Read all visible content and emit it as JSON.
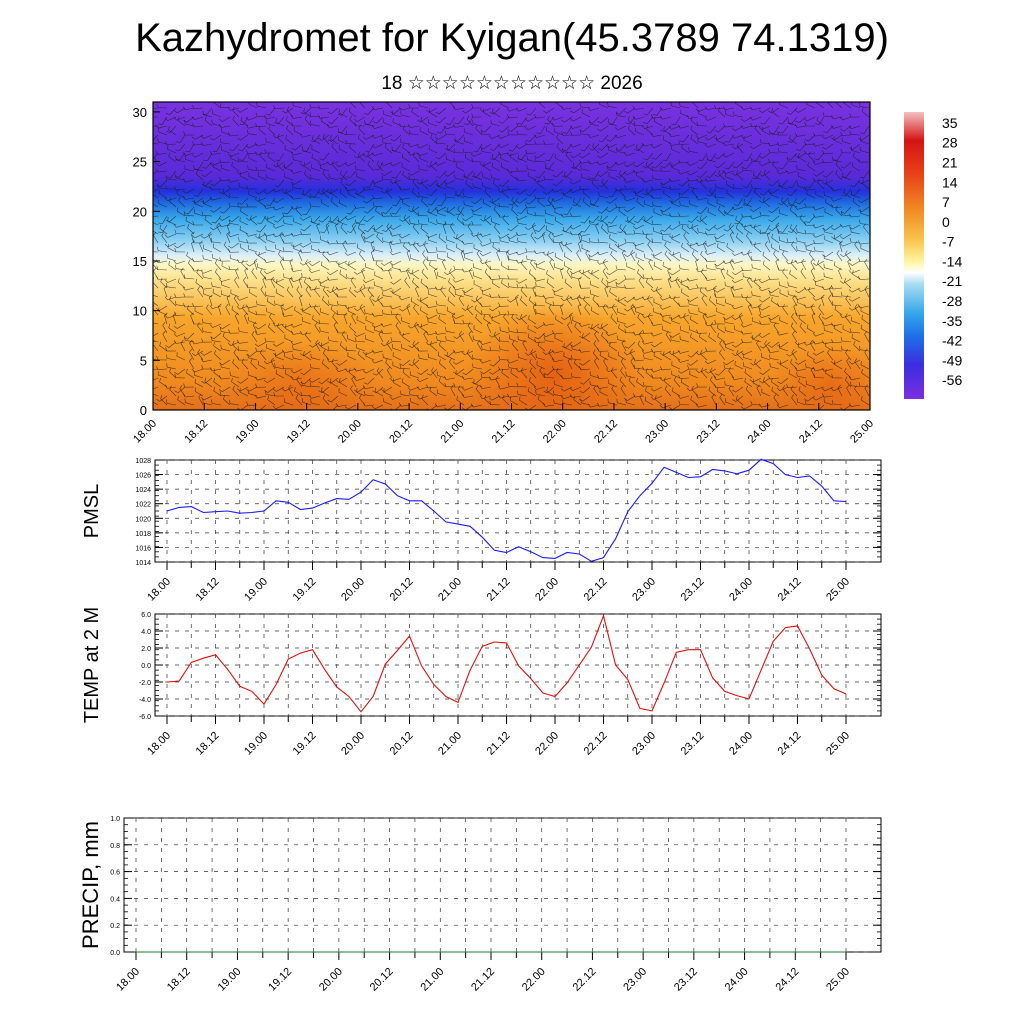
{
  "title": "Kazhydromet for Kyigan(45.3789 74.1319)",
  "subtitle": "18 ☆☆☆☆☆☆☆☆☆☆☆ 2026",
  "x_ticks": [
    "18.00",
    "18.12",
    "19.00",
    "19.12",
    "20.00",
    "20.12",
    "21.00",
    "21.12",
    "22.00",
    "22.12",
    "23.00",
    "23.12",
    "24.00",
    "24.12",
    "25.00"
  ],
  "colors": {
    "pmsl_line": "#1a1aff",
    "temp_line": "#e01010",
    "precip_line": "#1a7a3a",
    "frame": "#000000",
    "grid": "#555555"
  },
  "chart_data": [
    {
      "type": "heatmap",
      "name": "vertical-section",
      "title": "",
      "ylabel": "",
      "ylim": [
        0,
        31
      ],
      "y_ticks": [
        "0",
        "5",
        "10",
        "15",
        "20",
        "25",
        "30"
      ],
      "colorbar_labels": [
        "35",
        "28",
        "21",
        "14",
        "7",
        "0",
        "-7",
        "-14",
        "-21",
        "-28",
        "-35",
        "-42",
        "-49",
        "-56"
      ],
      "colorbar_range": [
        -63,
        42
      ],
      "description_value": "temperature by height with wind barbs"
    },
    {
      "type": "line",
      "name": "pmsl",
      "ylabel": "PMSL",
      "ylim": [
        1014,
        1028
      ],
      "y_ticks": [
        "1014",
        "1016",
        "1018",
        "1020",
        "1022",
        "1024",
        "1026",
        "1028"
      ],
      "x_steps": 2,
      "values": [
        1021.0,
        1021.5,
        1021.6,
        1020.8,
        1020.9,
        1021.0,
        1020.7,
        1020.8,
        1021.0,
        1022.4,
        1022.2,
        1021.2,
        1021.4,
        1022.1,
        1022.7,
        1022.6,
        1023.6,
        1025.3,
        1024.7,
        1023.1,
        1022.4,
        1022.4,
        1021.0,
        1019.5,
        1019.2,
        1018.9,
        1017.4,
        1015.6,
        1015.3,
        1016.1,
        1015.4,
        1014.6,
        1014.5,
        1015.3,
        1015.1,
        1014.1,
        1014.6,
        1017.2,
        1020.9,
        1023.1,
        1024.8,
        1027.0,
        1026.3,
        1025.6,
        1025.7,
        1026.7,
        1026.5,
        1026.1,
        1026.6,
        1028.1,
        1027.5,
        1026.0,
        1025.6,
        1025.8,
        1024.4,
        1022.4,
        1022.3
      ]
    },
    {
      "type": "line",
      "name": "temp-2m",
      "ylabel": "TEMP at 2 M",
      "ylim": [
        -6,
        6
      ],
      "y_ticks": [
        "-6.0",
        "-4.0",
        "-2.0",
        "0.0",
        "2.0",
        "4.0",
        "6.0"
      ],
      "values": [
        -2.0,
        -1.9,
        0.3,
        0.8,
        1.2,
        -0.5,
        -2.5,
        -3.1,
        -4.6,
        -2.3,
        0.7,
        1.4,
        1.8,
        -0.5,
        -2.6,
        -3.7,
        -5.5,
        -3.7,
        0.1,
        1.7,
        3.4,
        -0.1,
        -2.3,
        -3.7,
        -4.4,
        -0.6,
        2.2,
        2.7,
        2.6,
        -0.1,
        -1.6,
        -3.3,
        -3.7,
        -2.1,
        0.0,
        2.1,
        5.8,
        0.0,
        -1.7,
        -5.1,
        -5.4,
        -2.1,
        1.5,
        1.8,
        1.8,
        -1.5,
        -3.1,
        -3.6,
        -4.0,
        -0.6,
        2.8,
        4.4,
        4.6,
        1.9,
        -1.2,
        -2.8,
        -3.4
      ]
    },
    {
      "type": "line",
      "name": "precip",
      "ylabel": "PRECIP, mm",
      "ylim": [
        0,
        1
      ],
      "y_ticks": [
        "0.0",
        "0.2",
        "0.4",
        "0.6",
        "0.8",
        "1.0"
      ],
      "values": [
        0,
        0,
        0,
        0,
        0,
        0,
        0,
        0,
        0,
        0,
        0,
        0,
        0,
        0,
        0,
        0,
        0,
        0,
        0,
        0,
        0,
        0,
        0,
        0,
        0,
        0,
        0,
        0,
        0,
        0,
        0,
        0,
        0,
        0,
        0,
        0,
        0,
        0,
        0,
        0,
        0,
        0,
        0,
        0,
        0,
        0,
        0,
        0,
        0,
        0,
        0,
        0,
        0,
        0,
        0,
        0,
        0
      ]
    }
  ]
}
